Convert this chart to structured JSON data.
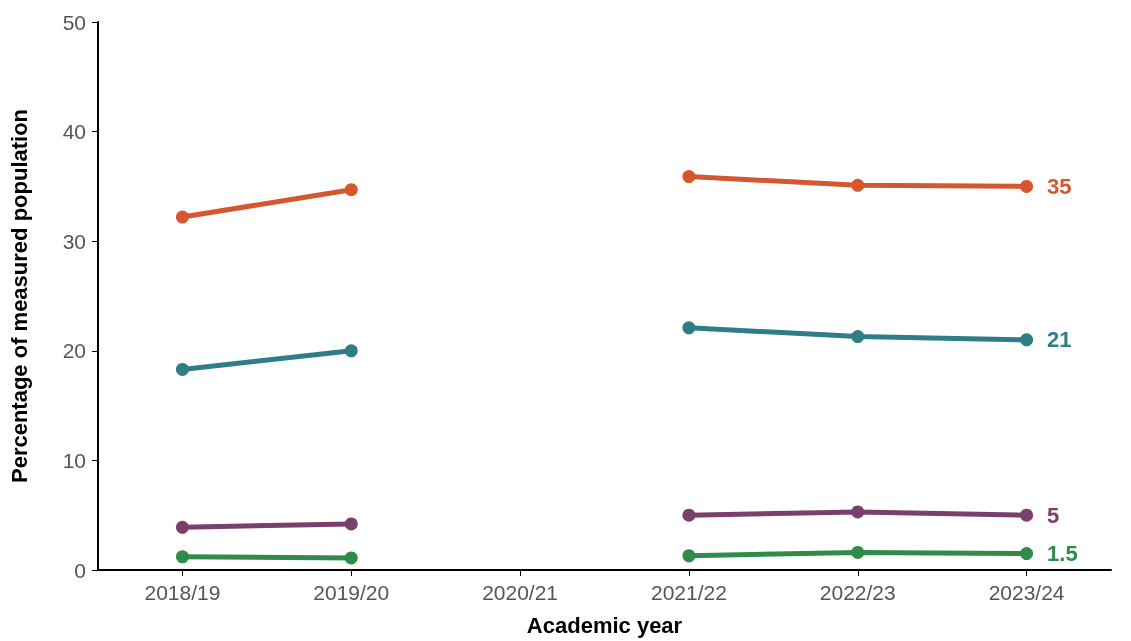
{
  "chart_data": {
    "type": "line",
    "xlabel": "Academic year",
    "ylabel": "Percentage of measured population",
    "categories": [
      "2018/19",
      "2019/20",
      "2020/21",
      "2021/22",
      "2022/23",
      "2023/24"
    ],
    "series": [
      {
        "color": "#d4572f",
        "values": [
          32.2,
          34.7,
          null,
          35.9,
          35.1,
          35
        ],
        "value_labels": [
          null,
          null,
          null,
          null,
          null,
          "35"
        ]
      },
      {
        "color": "#2e7d87",
        "values": [
          18.3,
          20.0,
          null,
          22.1,
          21.3,
          21
        ],
        "value_labels": [
          null,
          null,
          null,
          null,
          null,
          "21"
        ]
      },
      {
        "color": "#7b3f6b",
        "values": [
          3.9,
          4.2,
          null,
          5.0,
          5.3,
          5
        ],
        "value_labels": [
          null,
          null,
          null,
          null,
          null,
          "5"
        ]
      },
      {
        "color": "#2e8b4a",
        "values": [
          1.2,
          1.1,
          null,
          1.3,
          1.6,
          1.5
        ],
        "value_labels": [
          null,
          null,
          null,
          null,
          null,
          "1.5"
        ]
      }
    ],
    "ylim": [
      0,
      50
    ],
    "yticks": [
      0,
      10,
      20,
      30,
      40,
      50
    ],
    "grid": false,
    "marker": "circle",
    "line_style": "solid"
  }
}
